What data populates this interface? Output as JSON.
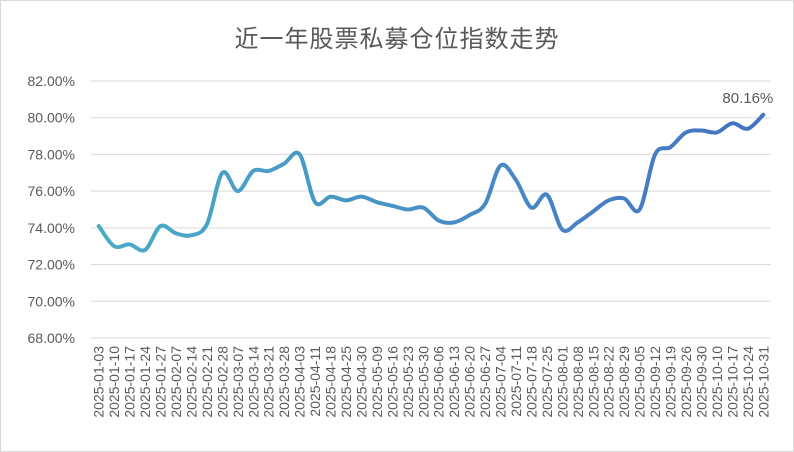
{
  "chart_data": {
    "type": "line",
    "title": "近一年股票私募仓位指数走势",
    "xlabel": "",
    "ylabel": "",
    "ylim": [
      68,
      82
    ],
    "yticks": [
      68,
      70,
      72,
      74,
      76,
      78,
      80,
      82
    ],
    "ytick_labels": [
      "68.00%",
      "70.00%",
      "72.00%",
      "74.00%",
      "76.00%",
      "78.00%",
      "80.00%",
      "82.00%"
    ],
    "grid": true,
    "legend": "none",
    "line_colors": [
      "#4bacc6",
      "#4472c4"
    ],
    "x": [
      "2025-01-03",
      "2025-01-10",
      "2025-01-17",
      "2025-01-24",
      "2025-01-27",
      "2025-02-07",
      "2025-02-14",
      "2025-02-21",
      "2025-02-28",
      "2025-03-07",
      "2025-03-14",
      "2025-03-21",
      "2025-03-28",
      "2025-04-03",
      "2025-04-11",
      "2025-04-18",
      "2025-04-25",
      "2025-04-30",
      "2025-05-09",
      "2025-05-16",
      "2025-05-23",
      "2025-05-30",
      "2025-06-06",
      "2025-06-13",
      "2025-06-20",
      "2025-06-27",
      "2025-07-04",
      "2025-07-11",
      "2025-07-18",
      "2025-07-25",
      "2025-08-01",
      "2025-08-08",
      "2025-08-15",
      "2025-08-22",
      "2025-08-29",
      "2025-09-05",
      "2025-09-12",
      "2025-09-19",
      "2025-09-26",
      "2025-09-30",
      "2025-10-10",
      "2025-10-17",
      "2025-10-24",
      "2025-10-31"
    ],
    "x_tick_labels": [
      "2025-01-03",
      "2025-01-10",
      "2025-01-17",
      "2025-01-24",
      "2025-01-27",
      "2025-02-07",
      "2025-02-14",
      "2025-02-21",
      "2025-02-28",
      "2025-03-07",
      "2025-03-14",
      "2025-03-21",
      "2025-03-28",
      "2025-04-03",
      "2025-04-11",
      "2025-04-18",
      "2025-04-25",
      "2025-04-30",
      "2025-05-09",
      "2025-05-16",
      "2025-05-23",
      "2025-05-30",
      "2025-06-06",
      "2025-06-13",
      "2025-06-20",
      "2025-06-27",
      "2025-07-04",
      "2025-07-11",
      "2025-07-18",
      "2025-07-25",
      "2025-08-01",
      "2025-08-08",
      "2025-08-15",
      "2025-08-22",
      "2025-08-29",
      "2025-09-05",
      "2025-09-12",
      "2025-09-19",
      "2025-09-26",
      "2025-09-30",
      "2025-10-10",
      "2025-10-17",
      "2025-10-24",
      "2025-10-31"
    ],
    "series": [
      {
        "values": [
          74.1,
          73.0,
          73.1,
          72.8,
          74.1,
          73.7,
          73.6,
          74.2,
          77.0,
          76.0,
          77.1,
          77.1,
          77.5,
          78.0,
          75.4,
          75.7,
          75.5,
          75.7,
          75.4,
          75.2,
          75.0,
          75.1,
          74.4,
          74.3,
          74.7,
          75.3,
          77.4,
          76.6,
          75.1,
          75.8,
          73.9,
          74.3,
          74.9,
          75.5,
          75.6,
          75.0,
          78.0,
          78.4,
          79.2,
          79.3,
          79.2,
          79.7,
          79.4,
          80.16
        ]
      }
    ],
    "annotations": [
      {
        "label": "80.16%",
        "x": "2025-10-31",
        "value": 80.16
      }
    ]
  }
}
